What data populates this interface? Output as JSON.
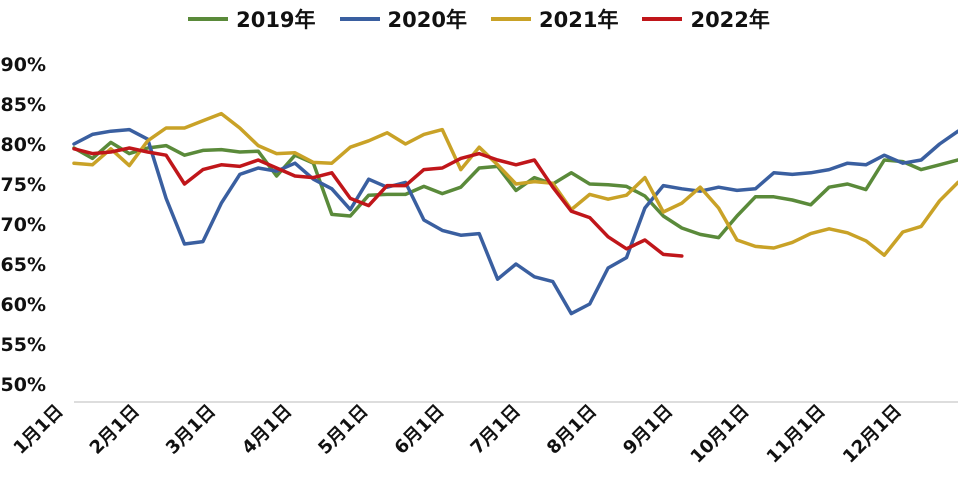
{
  "chart_data": {
    "type": "line",
    "title": "",
    "xlabel": "",
    "ylabel": "",
    "ylim": [
      50,
      90
    ],
    "y_ticks": [
      "50%",
      "55%",
      "60%",
      "65%",
      "70%",
      "75%",
      "80%",
      "85%",
      "90%"
    ],
    "x_ticks": [
      "1月1日",
      "2月1日",
      "3月1日",
      "4月1日",
      "5月1日",
      "6月1日",
      "7月1日",
      "8月1日",
      "9月1日",
      "10月1日",
      "11月1日",
      "12月1日"
    ],
    "grid": false,
    "legend_position": "top-center",
    "series": [
      {
        "name": "2019年",
        "color": "#5a8a3a",
        "values": [
          79.5,
          78.2,
          80.2,
          78.8,
          79.5,
          79.8,
          78.6,
          79.2,
          79.3,
          79.0,
          79.1,
          76.0,
          78.6,
          77.6,
          71.2,
          71.0,
          73.6,
          73.7,
          73.7,
          74.7,
          73.8,
          74.6,
          77.0,
          77.2,
          74.2,
          75.8,
          75.0,
          76.4,
          75.0,
          74.9,
          74.7,
          73.5,
          71.0,
          69.5,
          68.7,
          68.3,
          71.0,
          73.4,
          73.4,
          73.0,
          72.4,
          74.6,
          75.0,
          74.3,
          78.0,
          77.8,
          76.8,
          77.4,
          78.0,
          79.0
        ]
      },
      {
        "name": "2020年",
        "color": "#3a5fa0",
        "values": [
          80.0,
          81.2,
          81.6,
          81.8,
          80.6,
          73.2,
          67.5,
          67.8,
          72.6,
          76.2,
          77.0,
          76.6,
          77.6,
          75.6,
          74.4,
          71.8,
          75.6,
          74.6,
          75.2,
          70.5,
          69.2,
          68.6,
          68.8,
          63.1,
          65.0,
          63.4,
          62.8,
          58.8,
          60.0,
          64.5,
          65.8,
          72.0,
          74.8,
          74.4,
          74.1,
          74.6,
          74.2,
          74.4,
          76.4,
          76.2,
          76.4,
          76.8,
          77.6,
          77.4,
          78.6,
          77.6,
          78.0,
          80.0,
          81.6,
          80.5
        ]
      },
      {
        "name": "2021年",
        "color": "#c9a227",
        "values": [
          77.6,
          77.4,
          79.4,
          77.3,
          80.4,
          82.0,
          82.0,
          82.9,
          83.8,
          82.0,
          79.8,
          78.8,
          78.9,
          77.7,
          77.6,
          79.6,
          80.4,
          81.4,
          80.0,
          81.2,
          81.8,
          76.8,
          79.6,
          77.4,
          75.0,
          75.3,
          75.1,
          71.8,
          73.7,
          73.1,
          73.6,
          75.8,
          71.5,
          72.6,
          74.6,
          72.0,
          68.0,
          67.2,
          67.0,
          67.7,
          68.8,
          69.4,
          68.9,
          67.9,
          66.1,
          69.0,
          69.7,
          72.9,
          75.2
        ]
      },
      {
        "name": "2022年",
        "color": "#c0161a",
        "values": [
          79.4,
          78.8,
          79.0,
          79.5,
          79.0,
          78.6,
          75.0,
          76.8,
          77.4,
          77.2,
          78.0,
          77.0,
          76.0,
          75.8,
          76.4,
          73.2,
          72.3,
          74.8,
          74.8,
          76.8,
          77.0,
          78.2,
          78.8,
          78.0,
          77.4,
          78.0,
          74.6,
          71.6,
          70.8,
          68.4,
          66.9,
          68.0,
          66.2,
          66.0
        ]
      }
    ]
  }
}
